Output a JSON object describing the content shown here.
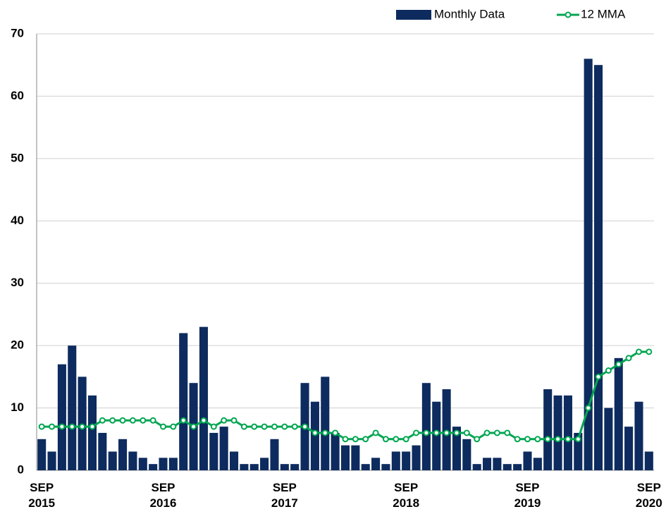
{
  "chart_data": {
    "type": "bar-line",
    "categories": [
      "SEP 2015",
      null,
      null,
      null,
      null,
      null,
      null,
      null,
      null,
      null,
      null,
      null,
      "SEP 2016",
      null,
      null,
      null,
      null,
      null,
      null,
      null,
      null,
      null,
      null,
      null,
      "SEP 2017",
      null,
      null,
      null,
      null,
      null,
      null,
      null,
      null,
      null,
      null,
      null,
      "SEP 2018",
      null,
      null,
      null,
      null,
      null,
      null,
      null,
      null,
      null,
      null,
      null,
      "SEP 2019",
      null,
      null,
      null,
      null,
      null,
      null,
      null,
      null,
      null,
      null,
      null,
      "SEP 2020"
    ],
    "series": [
      {
        "name": "Monthly Data",
        "type": "bar",
        "color": "#0d2b5e",
        "values": [
          5,
          3,
          17,
          20,
          15,
          12,
          6,
          3,
          5,
          3,
          2,
          1,
          2,
          2,
          22,
          14,
          23,
          6,
          7,
          3,
          1,
          1,
          2,
          5,
          1,
          1,
          14,
          11,
          15,
          6,
          4,
          4,
          1,
          2,
          1,
          3,
          3,
          4,
          14,
          11,
          13,
          7,
          5,
          1,
          2,
          2,
          1,
          1,
          3,
          2,
          13,
          12,
          12,
          6,
          66,
          65,
          10,
          18,
          7,
          11,
          3
        ]
      },
      {
        "name": "12 MMA",
        "type": "line",
        "color": "#00a651",
        "values": [
          7,
          7,
          7,
          7,
          7,
          7,
          8,
          8,
          8,
          8,
          8,
          8,
          7,
          7,
          8,
          7,
          8,
          7,
          8,
          8,
          7,
          7,
          7,
          7,
          7,
          7,
          7,
          6,
          6,
          6,
          5,
          5,
          5,
          6,
          5,
          5,
          5,
          6,
          6,
          6,
          6,
          6,
          6,
          5,
          6,
          6,
          6,
          5,
          5,
          5,
          5,
          5,
          5,
          5,
          10,
          15,
          16,
          17,
          18,
          19,
          19
        ]
      }
    ],
    "ylim": [
      0,
      70
    ],
    "yticks": [
      0,
      10,
      20,
      30,
      40,
      50,
      60,
      70
    ],
    "grid": true,
    "legend": "top-right"
  }
}
